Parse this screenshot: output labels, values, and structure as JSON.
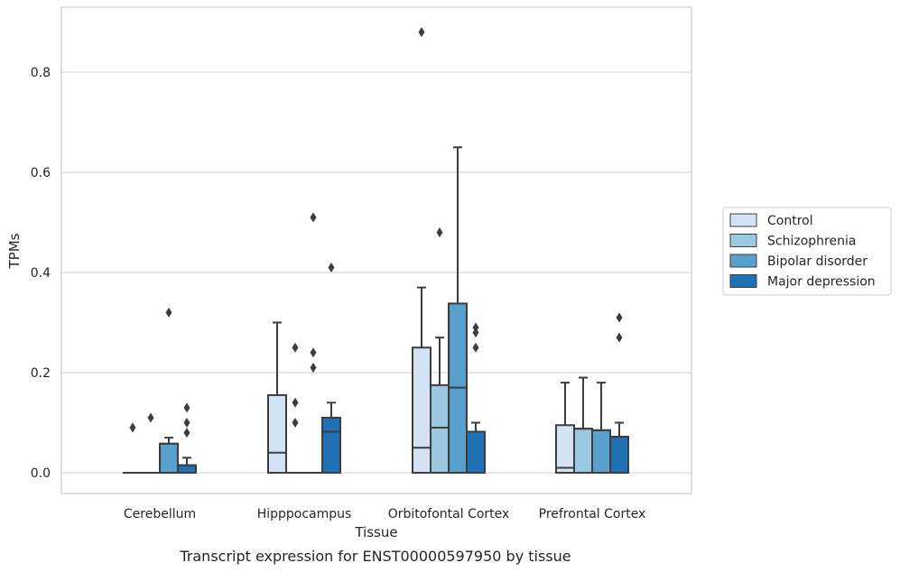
{
  "caption": "Transcript expression for ENST00000597950 by tissue",
  "chart_data": {
    "type": "box",
    "xlabel": "Tissue",
    "ylabel": "TPMs",
    "ylim": [
      -0.043,
      0.93
    ],
    "yticks": [
      "0.0",
      "0.2",
      "0.4",
      "0.6",
      "0.8"
    ],
    "grid": "horizontal",
    "legend_position": "right",
    "categories": [
      "Cerebellum",
      "Hipppocampus",
      "Orbitofontal Cortex",
      "Prefrontal Cortex"
    ],
    "series": [
      {
        "name": "Control",
        "color": "#d3e3f3",
        "boxes": [
          {
            "q1": 0,
            "median": 0,
            "q3": 0,
            "whisker_low": 0,
            "whisker_high": 0,
            "outliers": [
              0.09
            ]
          },
          {
            "q1": 0,
            "median": 0.04,
            "q3": 0.155,
            "whisker_low": 0,
            "whisker_high": 0.3,
            "outliers": []
          },
          {
            "q1": 0,
            "median": 0.05,
            "q3": 0.25,
            "whisker_low": 0,
            "whisker_high": 0.37,
            "outliers": [
              0.88
            ]
          },
          {
            "q1": 0,
            "median": 0.01,
            "q3": 0.095,
            "whisker_low": 0,
            "whisker_high": 0.18,
            "outliers": []
          }
        ]
      },
      {
        "name": "Schizophrenia",
        "color": "#9ac8e0",
        "boxes": [
          {
            "q1": 0,
            "median": 0,
            "q3": 0,
            "whisker_low": 0,
            "whisker_high": 0,
            "outliers": [
              0.11
            ]
          },
          {
            "q1": 0,
            "median": 0,
            "q3": 0,
            "whisker_low": 0,
            "whisker_high": 0,
            "outliers": [
              0.25,
              0.14,
              0.1
            ]
          },
          {
            "q1": 0,
            "median": 0.09,
            "q3": 0.175,
            "whisker_low": 0,
            "whisker_high": 0.27,
            "outliers": [
              0.48
            ]
          },
          {
            "q1": 0,
            "median": 0.088,
            "q3": 0.088,
            "whisker_low": 0,
            "whisker_high": 0.19,
            "outliers": []
          }
        ]
      },
      {
        "name": "Bipolar disorder",
        "color": "#5aa0cd",
        "boxes": [
          {
            "q1": 0,
            "median": 0.058,
            "q3": 0.058,
            "whisker_low": 0,
            "whisker_high": 0.07,
            "outliers": [
              0.32
            ]
          },
          {
            "q1": 0,
            "median": 0,
            "q3": 0,
            "whisker_low": 0,
            "whisker_high": 0,
            "outliers": [
              0.51,
              0.24,
              0.21
            ]
          },
          {
            "q1": 0,
            "median": 0.17,
            "q3": 0.338,
            "whisker_low": 0,
            "whisker_high": 0.65,
            "outliers": []
          },
          {
            "q1": 0,
            "median": 0.085,
            "q3": 0.085,
            "whisker_low": 0,
            "whisker_high": 0.18,
            "outliers": []
          }
        ]
      },
      {
        "name": "Major depression",
        "color": "#2070b4",
        "boxes": [
          {
            "q1": 0,
            "median": 0.015,
            "q3": 0.015,
            "whisker_low": 0,
            "whisker_high": 0.03,
            "outliers": [
              0.13,
              0.1,
              0.08
            ]
          },
          {
            "q1": 0,
            "median": 0.082,
            "q3": 0.11,
            "whisker_low": 0,
            "whisker_high": 0.14,
            "outliers": [
              0.41
            ]
          },
          {
            "q1": 0,
            "median": 0.082,
            "q3": 0.082,
            "whisker_low": 0,
            "whisker_high": 0.1,
            "outliers": [
              0.29,
              0.28,
              0.25
            ]
          },
          {
            "q1": 0,
            "median": 0.072,
            "q3": 0.072,
            "whisker_low": 0,
            "whisker_high": 0.1,
            "outliers": [
              0.31,
              0.27
            ]
          }
        ]
      }
    ]
  }
}
